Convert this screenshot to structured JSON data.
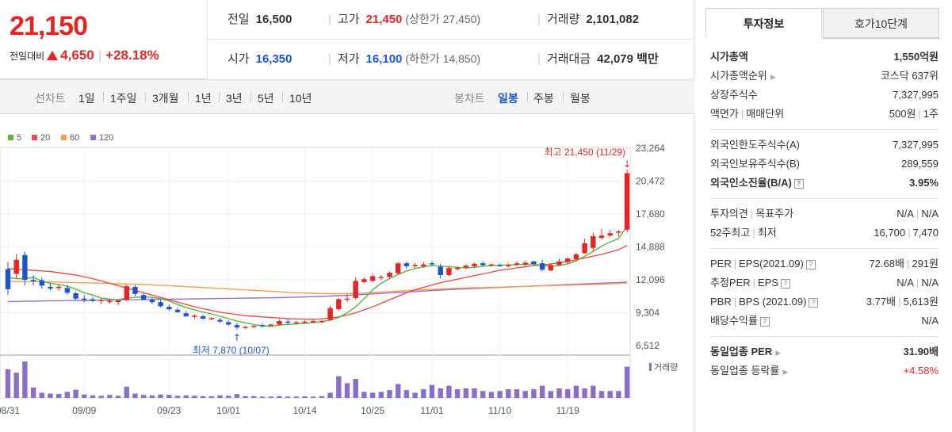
{
  "stock": {
    "price": "21,150",
    "change_label": "전일대비",
    "change_amount": "4,650",
    "change_rate": "+28.18%"
  },
  "summary": {
    "prev_close_label": "전일",
    "prev_close": "16,500",
    "high_label": "고가",
    "high": "21,450",
    "upper_limit_label": "(상한가",
    "upper_limit": "27,450)",
    "volume_label": "거래량",
    "volume": "2,101,082",
    "open_label": "시가",
    "open": "16,350",
    "low_label": "저가",
    "low": "16,100",
    "lower_limit_label": "(하한가",
    "lower_limit": "14,850)",
    "value_label": "거래대금",
    "value": "42,079",
    "value_unit": "백만"
  },
  "period_tabs": {
    "label": "선차트",
    "items": [
      "1일",
      "1주일",
      "3개월",
      "1년",
      "3년",
      "5년",
      "10년"
    ]
  },
  "candle_tabs": {
    "label": "봉차트",
    "items": [
      "일봉",
      "주봉",
      "월봉"
    ],
    "selected": "일봉"
  },
  "colors": {
    "up": "#e52525",
    "down": "#1b56c8",
    "ma5": "#55b83d",
    "ma20": "#ea4f4f",
    "ma60": "#f0a04b",
    "ma120": "#9a6dd0",
    "volume": "#8a6fc7"
  },
  "chart_data": {
    "type": "candlestick",
    "legend": [
      "5",
      "20",
      "60",
      "120"
    ],
    "y_ticks": [
      "23,264",
      "20,472",
      "17,680",
      "14,888",
      "12,096",
      "9,304",
      "6,512"
    ],
    "ylim": [
      6512,
      23264
    ],
    "x_ticks": [
      "08/31",
      "09/09",
      "09/23",
      "10/01",
      "10/14",
      "10/25",
      "11/01",
      "11/10",
      "11/19"
    ],
    "x_tick_index": [
      0,
      9,
      19,
      26,
      35,
      43,
      50,
      58,
      66
    ],
    "high_annotation": "최고 21,450 (11/29)",
    "low_annotation": "최저 7,870 (10/07)",
    "volume_label": "거래량",
    "candles": [
      [
        13000,
        13600,
        10800,
        11300
      ],
      [
        12600,
        14300,
        12200,
        13800
      ],
      [
        14200,
        14500,
        11600,
        12100
      ],
      [
        12100,
        12500,
        11600,
        12050
      ],
      [
        12050,
        12300,
        11350,
        11600
      ],
      [
        11500,
        11800,
        11200,
        11350
      ],
      [
        11450,
        11700,
        11150,
        11500
      ],
      [
        11400,
        11650,
        10850,
        11000
      ],
      [
        10950,
        11100,
        10350,
        10500
      ],
      [
        10500,
        10800,
        10200,
        10450
      ],
      [
        10450,
        10650,
        10200,
        10300
      ],
      [
        10300,
        10550,
        10000,
        10400
      ],
      [
        10200,
        10500,
        10050,
        10300
      ],
      [
        10200,
        10450,
        9950,
        10350
      ],
      [
        10400,
        11700,
        10300,
        11550
      ],
      [
        11500,
        11650,
        10700,
        10900
      ],
      [
        10800,
        10950,
        10350,
        10400
      ],
      [
        10400,
        10600,
        10050,
        10200
      ],
      [
        10200,
        10400,
        9750,
        9850
      ],
      [
        9800,
        10000,
        9450,
        9600
      ],
      [
        9550,
        9750,
        9300,
        9350
      ],
      [
        9250,
        9450,
        8950,
        9000
      ],
      [
        8950,
        9200,
        8800,
        9050
      ],
      [
        9000,
        9150,
        8700,
        8800
      ],
      [
        8750,
        8950,
        8650,
        8850
      ],
      [
        8700,
        8850,
        8450,
        8550
      ],
      [
        8500,
        8650,
        8200,
        8300
      ],
      [
        8250,
        8450,
        7870,
        8050
      ],
      [
        8050,
        8200,
        7950,
        8100
      ],
      [
        8150,
        8250,
        8000,
        8200
      ],
      [
        8250,
        8400,
        8050,
        8150
      ],
      [
        8200,
        8350,
        8100,
        8300
      ],
      [
        8300,
        8750,
        8250,
        8600
      ],
      [
        8550,
        8800,
        8300,
        8450
      ],
      [
        8450,
        8600,
        8350,
        8500
      ],
      [
        8500,
        8650,
        8400,
        8550
      ],
      [
        8550,
        8700,
        8450,
        8600
      ],
      [
        8500,
        8700,
        8400,
        8600
      ],
      [
        8700,
        9900,
        8650,
        9700
      ],
      [
        9600,
        10550,
        9500,
        10450
      ],
      [
        10400,
        10900,
        10250,
        10500
      ],
      [
        10550,
        12300,
        10400,
        12000
      ],
      [
        11900,
        12300,
        11800,
        12150
      ],
      [
        12000,
        12600,
        11900,
        12400
      ],
      [
        12250,
        12500,
        12050,
        12350
      ],
      [
        12350,
        12800,
        12200,
        12700
      ],
      [
        12650,
        13600,
        12500,
        13500
      ],
      [
        13500,
        13650,
        13050,
        13250
      ],
      [
        13300,
        13550,
        13100,
        13350
      ],
      [
        13250,
        13600,
        13100,
        13400
      ],
      [
        13500,
        13700,
        13250,
        13450
      ],
      [
        13200,
        13450,
        12200,
        12500
      ],
      [
        12500,
        13300,
        12400,
        13100
      ],
      [
        13050,
        13250,
        12900,
        13100
      ],
      [
        13150,
        13400,
        13000,
        13300
      ],
      [
        13250,
        13550,
        13150,
        13450
      ],
      [
        13500,
        13650,
        13200,
        13350
      ],
      [
        13350,
        13500,
        13200,
        13400
      ],
      [
        13350,
        13450,
        13200,
        13300
      ],
      [
        13300,
        13500,
        13150,
        13350
      ],
      [
        13450,
        13650,
        13250,
        13500
      ],
      [
        13400,
        13700,
        13250,
        13550
      ],
      [
        13650,
        13700,
        13300,
        13450
      ],
      [
        13500,
        13800,
        12800,
        12950
      ],
      [
        12900,
        13500,
        12800,
        13350
      ],
      [
        13350,
        13900,
        13300,
        13650
      ],
      [
        13600,
        14000,
        13450,
        13900
      ],
      [
        13850,
        14400,
        13800,
        14250
      ],
      [
        14350,
        15600,
        14300,
        15200
      ],
      [
        14800,
        16100,
        14500,
        15800
      ],
      [
        15650,
        16400,
        15500,
        15850
      ],
      [
        15850,
        16300,
        15700,
        16050
      ],
      [
        16100,
        16300,
        15750,
        16200
      ],
      [
        16350,
        21450,
        16100,
        21150
      ]
    ],
    "ma5": [
      12300,
      12200,
      12200,
      12300,
      12000,
      11800,
      11700,
      11550,
      11300,
      11000,
      10800,
      10550,
      10450,
      10400,
      10550,
      10600,
      10650,
      10600,
      10500,
      10300,
      10000,
      9750,
      9550,
      9350,
      9200,
      9000,
      8800,
      8600,
      8450,
      8300,
      8200,
      8150,
      8250,
      8300,
      8350,
      8400,
      8450,
      8550,
      8650,
      8900,
      9300,
      9800,
      10500,
      11250,
      11800,
      12200,
      12550,
      12850,
      13050,
      13200,
      13300,
      13250,
      13200,
      13150,
      13100,
      13150,
      13250,
      13300,
      13350,
      13350,
      13380,
      13400,
      13450,
      13300,
      13250,
      13300,
      13450,
      13700,
      14100,
      14500,
      14950,
      15300,
      15600,
      16650
    ],
    "ma20": [
      13050,
      13000,
      12950,
      12900,
      12850,
      12800,
      12700,
      12600,
      12500,
      12350,
      12200,
      12000,
      11800,
      11600,
      11400,
      11200,
      11000,
      10800,
      10600,
      10400,
      10200,
      10000,
      9800,
      9650,
      9500,
      9350,
      9250,
      9150,
      9050,
      9000,
      8950,
      8900,
      8850,
      8800,
      8780,
      8760,
      8750,
      8780,
      8850,
      8950,
      9100,
      9300,
      9550,
      9800,
      10100,
      10400,
      10700,
      11000,
      11250,
      11450,
      11650,
      11850,
      12000,
      12150,
      12300,
      12450,
      12600,
      12750,
      12900,
      13000,
      13100,
      13200,
      13300,
      13350,
      13450,
      13550,
      13650,
      13800,
      13950,
      14100,
      14250,
      14450,
      14650,
      15000
    ],
    "ma60": [
      11950,
      11950,
      11950,
      11950,
      11930,
      11910,
      11900,
      11880,
      11860,
      11840,
      11820,
      11800,
      11780,
      11760,
      11740,
      11720,
      11690,
      11660,
      11630,
      11600,
      11560,
      11520,
      11480,
      11440,
      11400,
      11360,
      11320,
      11280,
      11240,
      11200,
      11160,
      11120,
      11080,
      11040,
      11000,
      10970,
      10950,
      10930,
      10920,
      10920,
      10930,
      10950,
      10980,
      11020,
      11060,
      11100,
      11140,
      11180,
      11220,
      11260,
      11290,
      11320,
      11350,
      11380,
      11400,
      11420,
      11440,
      11460,
      11480,
      11500,
      11520,
      11540,
      11560,
      11580,
      11600,
      11620,
      11640,
      11660,
      11680,
      11700,
      11720,
      11750,
      11780,
      11830
    ],
    "ma120": [
      10250,
      10260,
      10270,
      10280,
      10300,
      10310,
      10320,
      10330,
      10340,
      10350,
      10360,
      10370,
      10380,
      10390,
      10400,
      10410,
      10420,
      10430,
      10440,
      10450,
      10460,
      10470,
      10480,
      10490,
      10500,
      10510,
      10520,
      10530,
      10540,
      10550,
      10560,
      10570,
      10580,
      10600,
      10620,
      10640,
      10660,
      10690,
      10720,
      10750,
      10780,
      10820,
      10860,
      10900,
      10940,
      10980,
      11020,
      11060,
      11100,
      11140,
      11180,
      11220,
      11260,
      11300,
      11330,
      11360,
      11390,
      11420,
      11450,
      11480,
      11510,
      11540,
      11570,
      11600,
      11630,
      11660,
      11690,
      11720,
      11750,
      11780,
      11810,
      11840,
      11870,
      11910
    ],
    "volume": [
      330,
      290,
      420,
      120,
      60,
      50,
      45,
      70,
      95,
      40,
      30,
      25,
      35,
      25,
      130,
      50,
      35,
      30,
      40,
      35,
      25,
      30,
      25,
      20,
      20,
      30,
      25,
      45,
      20,
      20,
      15,
      15,
      20,
      15,
      15,
      18,
      15,
      20,
      60,
      250,
      170,
      220,
      70,
      60,
      70,
      90,
      160,
      90,
      60,
      100,
      150,
      110,
      140,
      100,
      110,
      110,
      80,
      70,
      80,
      100,
      100,
      80,
      100,
      140,
      80,
      110,
      100,
      140,
      110,
      140,
      80,
      80,
      80,
      360
    ]
  },
  "right_tabs": [
    "투자정보",
    "호가10단계"
  ],
  "invest_info": {
    "market_cap_label": "시가총액",
    "market_cap": "1,550억원",
    "market_cap_rank_label": "시가총액순위",
    "market_cap_rank": "코스닥 637위",
    "shares_label": "상장주식수",
    "shares": "7,327,995",
    "par_label": "액면가",
    "trade_unit_label": "매매단위",
    "par_value": "500원",
    "trade_unit": "1주",
    "foreign_limit_label": "외국인한도주식수(A)",
    "foreign_limit": "7,327,995",
    "foreign_hold_label": "외국인보유주식수(B)",
    "foreign_hold": "289,559",
    "foreign_ratio_label": "외국인소진율(B/A)",
    "foreign_ratio": "3.95%",
    "opinion_label": "투자의견",
    "target_label": "목표주가",
    "opinion": "N/A",
    "target": "N/A",
    "w52_high_label": "52주최고",
    "w52_low_label": "최저",
    "w52_high": "16,700",
    "w52_low": "7,470",
    "per_label": "PER",
    "eps_label": "EPS(2021.09)",
    "per": "72.68배",
    "eps": "291원",
    "est_per_label": "추정PER",
    "est_eps_label": "EPS",
    "est_per": "N/A",
    "est_eps": "N/A",
    "pbr_label": "PBR",
    "bps_label": "BPS (2021.09)",
    "pbr": "3.77배",
    "bps": "5,613원",
    "div_label": "배당수익률",
    "div": "N/A",
    "sector_per_label": "동일업종 PER",
    "sector_per": "31.90배",
    "sector_change_label": "동일업종 등락률",
    "sector_change": "+4.58%"
  }
}
